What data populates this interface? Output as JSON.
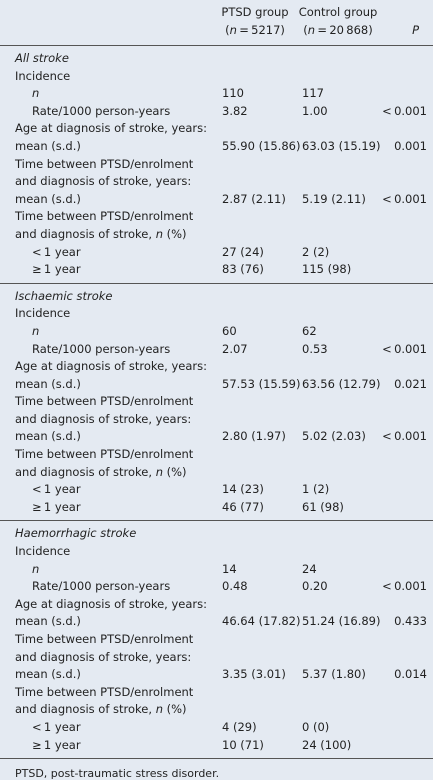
{
  "header": {
    "columns": [
      {
        "title": "PTSD group",
        "sub": [
          "(",
          {
            "italic": "n"
          },
          " = 5217)"
        ]
      },
      {
        "title": "Control group",
        "sub": [
          "(",
          {
            "italic": "n"
          },
          " = 20 868)"
        ]
      },
      {
        "title": "P"
      }
    ]
  },
  "sections": [
    {
      "title": "All stroke",
      "rows": [
        {
          "label": [
            "Incidence"
          ]
        },
        {
          "label": [
            {
              "italic": "n"
            }
          ],
          "indent": true,
          "values": [
            "110",
            "117",
            null
          ]
        },
        {
          "label": [
            "Rate/1000 person-years"
          ],
          "indent": true,
          "values": [
            "3.82",
            "1.00",
            "< 0.001"
          ]
        },
        {
          "label": [
            "Age at diagnosis of stroke, years: mean (s.d.)"
          ],
          "values": [
            "55.90 (15.86)",
            "63.03 (15.19)",
            "0.001"
          ]
        },
        {
          "label": [
            "Time between PTSD/enrolment and diagnosis of stroke, years: mean (s.d.)"
          ],
          "values": [
            "2.87 (2.11)",
            "5.19 (2.11)",
            "< 0.001"
          ]
        },
        {
          "label": [
            "Time between PTSD/enrolment and diagnosis of stroke, ",
            {
              "italic": "n"
            },
            " (%)"
          ]
        },
        {
          "label": [
            "< 1 year"
          ],
          "indent": true,
          "values": [
            "27 (24)",
            "2 (2)",
            null
          ]
        },
        {
          "label": [
            "≥ 1 year"
          ],
          "indent": true,
          "values": [
            "83 (76)",
            "115 (98)",
            null
          ]
        }
      ]
    },
    {
      "title": "Ischaemic stroke",
      "rows": [
        {
          "label": [
            "Incidence"
          ]
        },
        {
          "label": [
            {
              "italic": "n"
            }
          ],
          "indent": true,
          "values": [
            "60",
            "62",
            null
          ]
        },
        {
          "label": [
            "Rate/1000 person-years"
          ],
          "indent": true,
          "values": [
            "2.07",
            "0.53",
            "< 0.001"
          ]
        },
        {
          "label": [
            "Age at diagnosis of stroke, years: mean (s.d.)"
          ],
          "values": [
            "57.53 (15.59)",
            "63.56 (12.79)",
            "0.021"
          ]
        },
        {
          "label": [
            "Time between PTSD/enrolment and diagnosis of stroke, years: mean (s.d.)"
          ],
          "values": [
            "2.80 (1.97)",
            "5.02 (2.03)",
            "< 0.001"
          ]
        },
        {
          "label": [
            "Time between PTSD/enrolment and diagnosis of stroke, ",
            {
              "italic": "n"
            },
            " (%)"
          ]
        },
        {
          "label": [
            "< 1 year"
          ],
          "indent": true,
          "values": [
            "14 (23)",
            "1 (2)",
            null
          ]
        },
        {
          "label": [
            "≥ 1 year"
          ],
          "indent": true,
          "values": [
            "46 (77)",
            "61 (98)",
            null
          ]
        }
      ]
    },
    {
      "title": "Haemorrhagic stroke",
      "rows": [
        {
          "label": [
            "Incidence"
          ]
        },
        {
          "label": [
            {
              "italic": "n"
            }
          ],
          "indent": true,
          "values": [
            "14",
            "24",
            null
          ]
        },
        {
          "label": [
            "Rate/1000 person-years"
          ],
          "indent": true,
          "values": [
            "0.48",
            "0.20",
            "< 0.001"
          ]
        },
        {
          "label": [
            "Age at diagnosis of stroke, years: mean (s.d.)"
          ],
          "values": [
            "46.64 (17.82)",
            "51.24 (16.89)",
            "0.433"
          ]
        },
        {
          "label": [
            "Time between PTSD/enrolment and diagnosis of stroke, years: mean (s.d.)"
          ],
          "values": [
            "3.35 (3.01)",
            "5.37 (1.80)",
            "0.014"
          ]
        },
        {
          "label": [
            "Time between PTSD/enrolment and diagnosis of stroke, ",
            {
              "italic": "n"
            },
            " (%)"
          ]
        },
        {
          "label": [
            "< 1 year"
          ],
          "indent": true,
          "values": [
            "4 (29)",
            "0 (0)",
            null
          ]
        },
        {
          "label": [
            "≥ 1 year"
          ],
          "indent": true,
          "values": [
            "10 (71)",
            "24 (100)",
            null
          ]
        }
      ]
    }
  ],
  "footnote": "PTSD, post-traumatic stress disorder."
}
